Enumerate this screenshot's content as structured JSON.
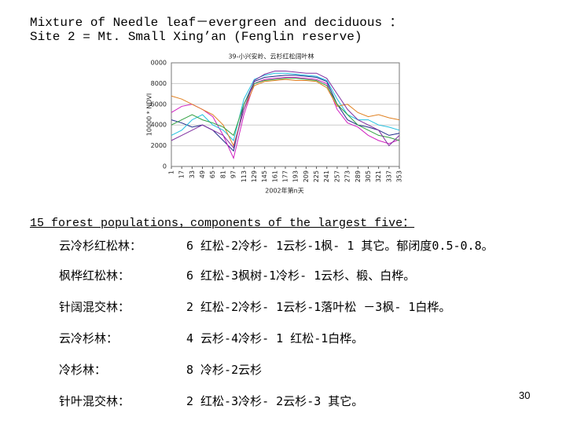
{
  "header": {
    "lines": [
      "Mixture of Needle leaf－evergreen and deciduous ：",
      "Site 2 = Mt. Small Xing’an (Fenglin reserve)"
    ]
  },
  "chart_data": {
    "type": "line",
    "title": "39-小兴安岭、云杉红松阔叶林",
    "y_label": "10000 * NDVI",
    "x_label": "2002年第n天",
    "x": [
      1,
      17,
      33,
      49,
      65,
      81,
      97,
      113,
      129,
      145,
      161,
      177,
      193,
      209,
      225,
      241,
      257,
      273,
      289,
      305,
      321,
      337,
      353
    ],
    "xlim": [
      1,
      353
    ],
    "xticks": [
      1,
      17,
      33,
      49,
      65,
      81,
      97,
      113,
      129,
      145,
      161,
      177,
      193,
      209,
      225,
      241,
      257,
      273,
      289,
      305,
      321,
      337,
      353
    ],
    "ylim": [
      0,
      10000
    ],
    "yticks": [
      0,
      2000,
      4000,
      6000,
      8000,
      {
        "value": 10000,
        "label": "0000"
      }
    ],
    "grid": true,
    "series": [
      {
        "color": "#1f2a8a",
        "values": [
          4500,
          4200,
          3800,
          4000,
          3500,
          2500,
          1500,
          6000,
          8200,
          8600,
          8700,
          8800,
          8800,
          8700,
          8600,
          8200,
          6000,
          4500,
          4000,
          3800,
          3500,
          3000,
          3200
        ]
      },
      {
        "color": "#d020c0",
        "values": [
          5200,
          5800,
          6000,
          5500,
          4800,
          3000,
          800,
          5000,
          8000,
          8400,
          8500,
          8600,
          8600,
          8500,
          8400,
          8000,
          5500,
          4200,
          3800,
          3000,
          2500,
          2200,
          2600
        ]
      },
      {
        "color": "#20c0e0",
        "values": [
          3000,
          3500,
          4500,
          5000,
          4000,
          3500,
          2500,
          6500,
          8400,
          8800,
          9000,
          9000,
          8900,
          8800,
          8700,
          8300,
          6500,
          5000,
          4500,
          4500,
          4000,
          3800,
          3500
        ]
      },
      {
        "color": "#e08020",
        "values": [
          6800,
          6500,
          6000,
          5500,
          5000,
          4000,
          2000,
          5500,
          7800,
          8200,
          8300,
          8400,
          8300,
          8300,
          8200,
          7600,
          5800,
          6000,
          5200,
          4800,
          5000,
          4700,
          4500
        ]
      },
      {
        "color": "#30a040",
        "values": [
          4000,
          4500,
          5000,
          4500,
          4200,
          3800,
          3000,
          6000,
          8000,
          8300,
          8400,
          8500,
          8500,
          8400,
          8300,
          7800,
          6000,
          5000,
          4000,
          3500,
          3000,
          2800,
          2500
        ]
      },
      {
        "color": "#8030a0",
        "values": [
          2500,
          3000,
          3500,
          4000,
          3500,
          3000,
          1800,
          5500,
          8300,
          8900,
          9200,
          9200,
          9100,
          9000,
          9000,
          8500,
          7000,
          5500,
          4500,
          4000,
          3500,
          2000,
          3000
        ]
      }
    ]
  },
  "subheading": "15 forest populations，components of the largest five：",
  "table": {
    "rows": [
      [
        "云冷杉红松林：",
        "6 红松-2冷杉- 1云杉-1枫- 1 其它。郁闭度0.5-0.8。"
      ],
      [
        "枫桦红松林：",
        "6 红松-3枫树-1冷杉- 1云杉、椴、白桦。"
      ],
      [
        "针阔混交林：",
        "2 红松-2冷杉- 1云杉-1落叶松 －3枫- 1白桦。"
      ],
      [
        "云冷杉林：",
        "4 云杉-4冷杉- 1 红松-1白桦。"
      ],
      [
        "冷杉林：",
        "8 冷杉-2云杉"
      ],
      [
        "针叶混交林：",
        "2 红松-3冷杉- 2云杉-3 其它。"
      ]
    ]
  },
  "page_number": "30"
}
